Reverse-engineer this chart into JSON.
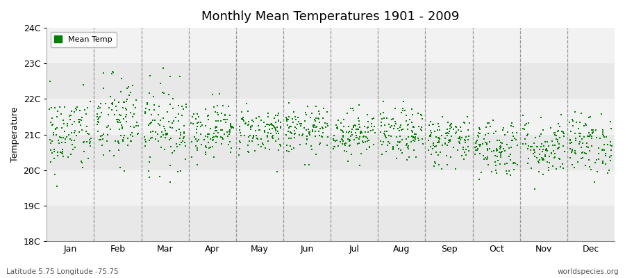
{
  "title": "Monthly Mean Temperatures 1901 - 2009",
  "ylabel": "Temperature",
  "xlabel_labels": [
    "Jan",
    "Feb",
    "Mar",
    "Apr",
    "May",
    "Jun",
    "Jul",
    "Aug",
    "Sep",
    "Oct",
    "Nov",
    "Dec"
  ],
  "subtitle": "Latitude 5.75 Longitude -75.75",
  "watermark": "worldspecies.org",
  "ylim": [
    18,
    24
  ],
  "yticks": [
    18,
    19,
    20,
    21,
    22,
    23,
    24
  ],
  "ytick_labels": [
    "18C",
    "19C",
    "20C",
    "21C",
    "22C",
    "23C",
    "24C"
  ],
  "dot_color": "#008000",
  "dot_size": 3,
  "legend_label": "Mean Temp",
  "background_color": "#ffffff",
  "band_color_dark": "#e8e8e8",
  "band_color_light": "#f2f2f2",
  "n_years": 109,
  "seed": 42,
  "monthly_means": [
    21.0,
    21.35,
    21.25,
    21.15,
    21.1,
    21.1,
    21.05,
    21.0,
    20.85,
    20.65,
    20.65,
    20.75
  ],
  "monthly_stds": [
    0.55,
    0.65,
    0.58,
    0.38,
    0.33,
    0.33,
    0.32,
    0.36,
    0.36,
    0.42,
    0.42,
    0.42
  ]
}
